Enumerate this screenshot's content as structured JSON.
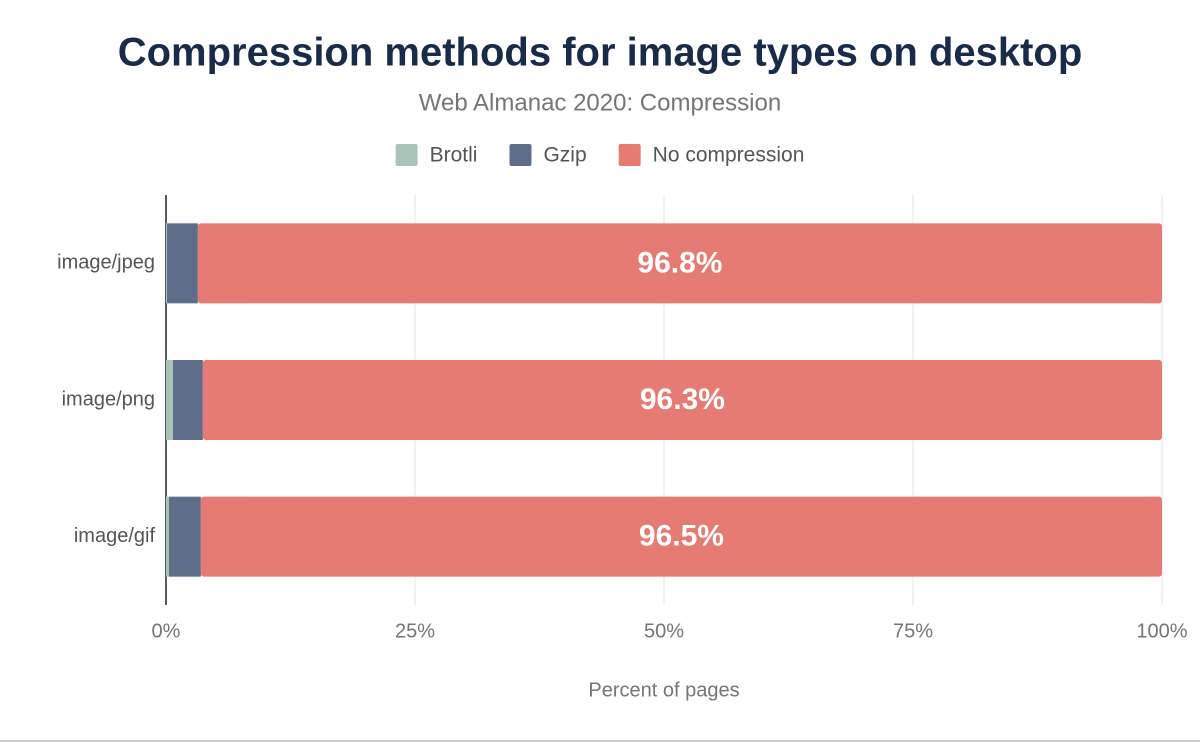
{
  "chart_data": {
    "type": "stacked-bar-horizontal",
    "title": "Compression methods for image types on desktop",
    "subtitle": "Web Almanac 2020: Compression",
    "x_label": "Percent of pages",
    "categories": [
      "image/jpeg",
      "image/png",
      "image/gif"
    ],
    "series": [
      {
        "name": "Brotli",
        "color": "#a9c4b9",
        "values": [
          0.1,
          0.7,
          0.3
        ]
      },
      {
        "name": "Gzip",
        "color": "#5d6d8a",
        "values": [
          3.1,
          3.0,
          3.2
        ]
      },
      {
        "name": "No compression",
        "color": "#e67b73",
        "values": [
          96.8,
          96.3,
          96.5
        ],
        "value_labels": [
          "96.8%",
          "96.3%",
          "96.5%"
        ]
      }
    ],
    "xlim": [
      0,
      100
    ],
    "xticks": [
      {
        "value": 0,
        "label": "0%"
      },
      {
        "value": 25,
        "label": "25%"
      },
      {
        "value": 50,
        "label": "50%"
      },
      {
        "value": 75,
        "label": "75%"
      },
      {
        "value": 100,
        "label": "100%"
      }
    ],
    "grid": true
  }
}
